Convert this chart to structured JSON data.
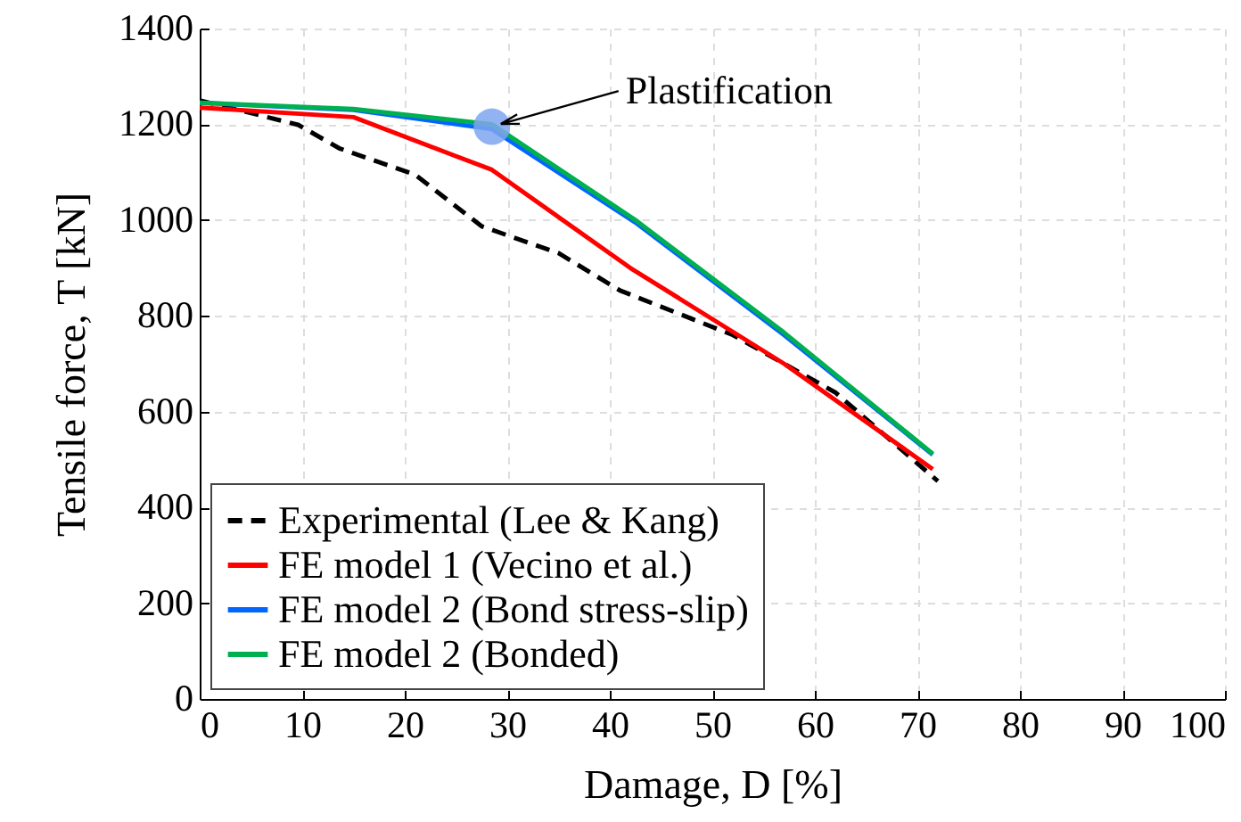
{
  "chart_data": {
    "type": "line",
    "xlabel": "Damage, D [%]",
    "ylabel": "Tensile force, T [kN]",
    "xlim": [
      0,
      100
    ],
    "xticks": [
      0,
      10,
      20,
      30,
      40,
      50,
      60,
      70,
      80,
      90,
      100
    ],
    "ylim": [
      0,
      1400
    ],
    "yticks": [
      0,
      200,
      400,
      600,
      800,
      {
        "value": 1000,
        "label": "1000"
      },
      {
        "value": 1200,
        "label": "1200"
      },
      {
        "value": 1400,
        "label": "1400"
      }
    ],
    "grid": true,
    "legend": "bottom left",
    "marker": "none",
    "annotations": [
      {
        "text": "Plastification",
        "x": 28.5,
        "y": 1195
      }
    ],
    "series": [
      {
        "name": "Experimental (Lee & Kang)",
        "color": "#000000",
        "line_style": "dashed",
        "x": [
          0,
          9.6,
          13.6,
          21,
          27.5,
          35,
          41,
          52,
          62,
          72
        ],
        "values": [
          1250,
          1199,
          1150,
          1095,
          987,
          931,
          853,
          760,
          640,
          455
        ]
      },
      {
        "name": "FE model 1 (Vecino et al.)",
        "color": "#ff0000",
        "line_style": "solid",
        "x": [
          0,
          15,
          28.5,
          42,
          57,
          71.5
        ],
        "values": [
          1235,
          1215,
          1105,
          900,
          700,
          480
        ]
      },
      {
        "name": "FE model 2 (Bond stress-slip)",
        "color": "#0066ff",
        "line_style": "solid",
        "x": [
          0,
          15,
          28.5,
          42.5,
          57,
          71.5
        ],
        "values": [
          1245,
          1230,
          1190,
          995,
          760,
          510
        ]
      },
      {
        "name": "FE model 2 (Bonded)",
        "color": "#00b050",
        "line_style": "solid",
        "x": [
          0,
          15,
          28.5,
          42.5,
          57,
          71.5
        ],
        "values": [
          1245,
          1232,
          1200,
          1000,
          765,
          512
        ]
      },
      {
        "type": "scatter",
        "color": "#7fa6f0",
        "marker": "circle",
        "x": [
          28.5
        ],
        "values": [
          1195
        ]
      }
    ]
  }
}
